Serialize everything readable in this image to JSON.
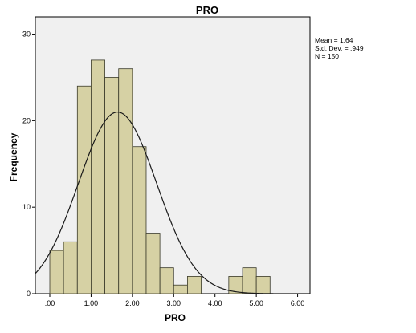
{
  "chart_data": {
    "type": "bar",
    "title": "PRO",
    "xlabel": "PRO",
    "ylabel": "Frequency",
    "xlim": [
      -0.35,
      6.3
    ],
    "ylim": [
      0,
      32
    ],
    "bin_width": 0.333,
    "bins": [
      {
        "start": 0.0,
        "count": 5
      },
      {
        "start": 0.333,
        "count": 6
      },
      {
        "start": 0.667,
        "count": 24
      },
      {
        "start": 1.0,
        "count": 27
      },
      {
        "start": 1.333,
        "count": 25
      },
      {
        "start": 1.667,
        "count": 26
      },
      {
        "start": 2.0,
        "count": 17
      },
      {
        "start": 2.333,
        "count": 7
      },
      {
        "start": 2.667,
        "count": 3
      },
      {
        "start": 3.0,
        "count": 1
      },
      {
        "start": 3.333,
        "count": 2
      },
      {
        "start": 4.333,
        "count": 2
      },
      {
        "start": 4.667,
        "count": 3
      },
      {
        "start": 5.0,
        "count": 2
      }
    ],
    "x_ticks": [
      0,
      1,
      2,
      3,
      4,
      5,
      6
    ],
    "x_tick_labels": [
      ".00",
      "1.00",
      "2.00",
      "3.00",
      "4.00",
      "5.00",
      "6.00"
    ],
    "y_ticks": [
      0,
      10,
      20,
      30
    ],
    "y_tick_labels": [
      "0",
      "10",
      "20",
      "30"
    ],
    "normal_curve": {
      "mean": 1.64,
      "std": 0.949,
      "n": 150
    },
    "stats": [
      "Mean = 1.64",
      "Std. Dev. = .949",
      "N = 150"
    ],
    "grid": false,
    "colors": {
      "bar_fill": "#d6d1a4",
      "bar_stroke": "#3a3a2a",
      "plot_background": "#f0f0f0",
      "curve": "#1a1a1a"
    }
  }
}
